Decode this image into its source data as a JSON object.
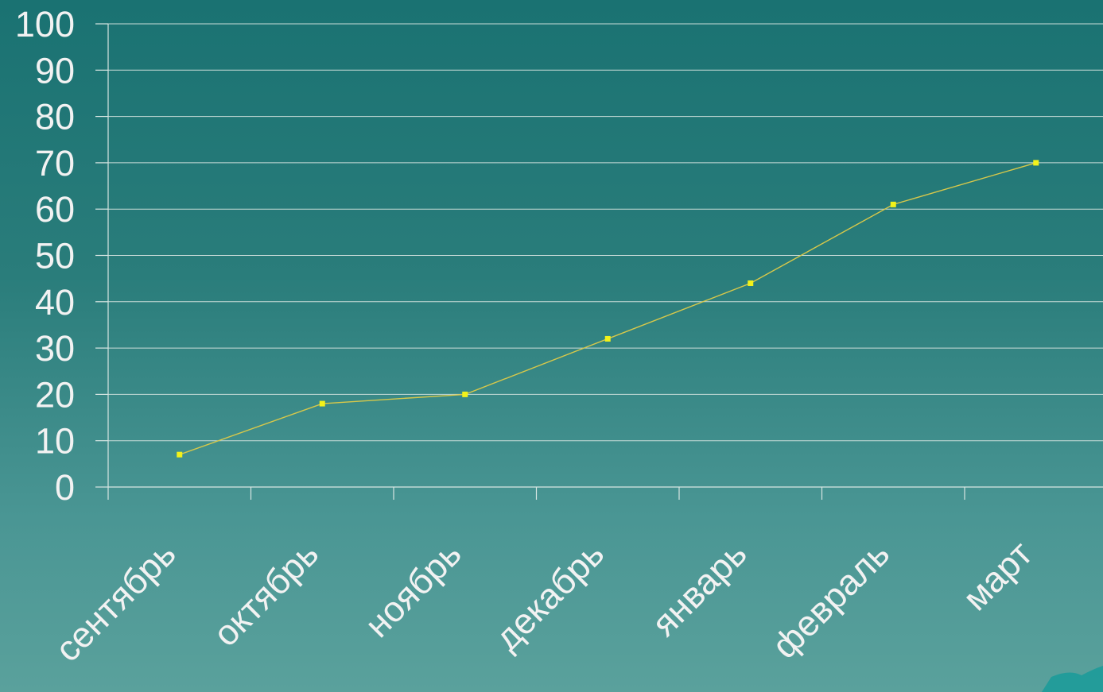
{
  "chart_data": {
    "type": "line",
    "categories": [
      "сентябрь",
      "октябрь",
      "ноябрь",
      "декабрь",
      "январь",
      "февраль",
      "март"
    ],
    "series": [
      {
        "values": [
          7,
          18,
          20,
          32,
          44,
          61,
          70
        ]
      }
    ],
    "ylim": [
      0,
      100
    ],
    "yticks": [
      "0",
      "10",
      "20",
      "30",
      "40",
      "50",
      "60",
      "70",
      "80",
      "90",
      "100"
    ],
    "grid": true,
    "legend": "none",
    "colors": {
      "line": "#d7c84a",
      "marker": "#f2f21a",
      "text": "#f2f2f2",
      "grid": "#c8dcd8"
    }
  },
  "decoration": {
    "corner_icon": "teal-leaf-shape-icon"
  }
}
